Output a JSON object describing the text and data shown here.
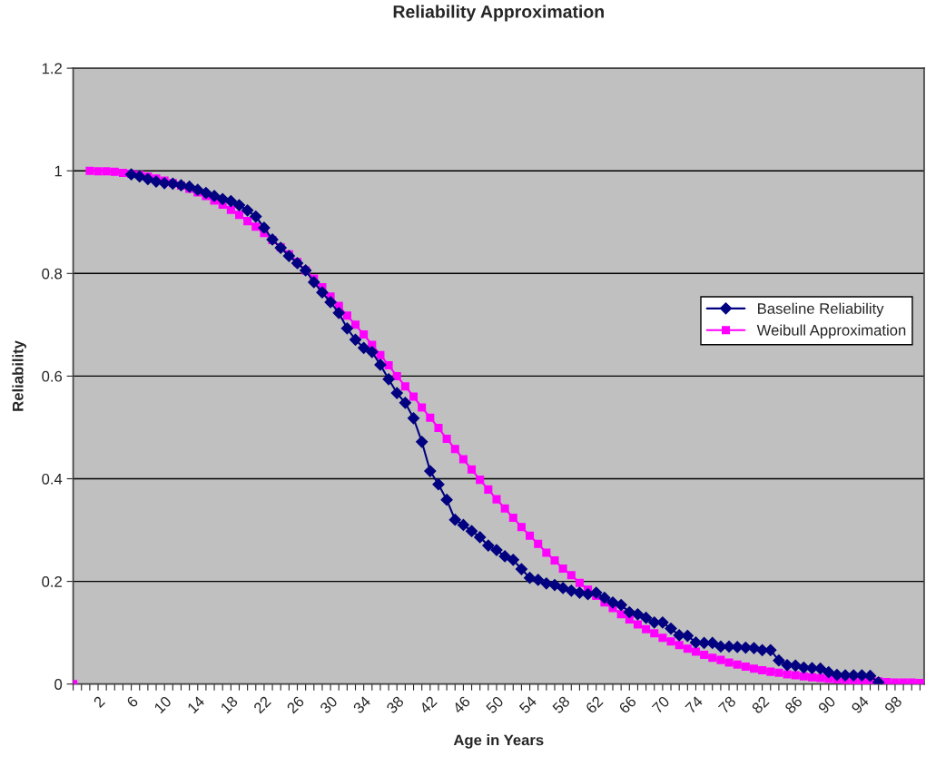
{
  "chart_data": {
    "type": "line",
    "title": "Reliability Approximation",
    "xlabel": "Age in Years",
    "ylabel": "Reliability",
    "categories": [
      null,
      null,
      null,
      "2",
      null,
      null,
      null,
      "6",
      null,
      null,
      null,
      "10",
      null,
      null,
      null,
      "14",
      null,
      null,
      null,
      "18",
      null,
      null,
      null,
      "22",
      null,
      null,
      null,
      "26",
      null,
      null,
      null,
      "30",
      null,
      null,
      null,
      "34",
      null,
      null,
      null,
      "38",
      null,
      null,
      null,
      "42",
      null,
      null,
      null,
      "46",
      null,
      null,
      null,
      "50",
      null,
      null,
      null,
      "54",
      null,
      null,
      null,
      "58",
      null,
      null,
      null,
      "62",
      null,
      null,
      null,
      "66",
      null,
      null,
      null,
      "70",
      null,
      null,
      null,
      "74",
      null,
      null,
      null,
      "78",
      null,
      null,
      null,
      "82",
      null,
      null,
      null,
      "86",
      null,
      null,
      null,
      "90",
      null,
      null,
      null,
      "94",
      null,
      null,
      null,
      "98",
      null,
      null,
      null
    ],
    "series": [
      {
        "name": "Baseline Reliability",
        "color": "#000080",
        "marker": "diamond",
        "values": [
          null,
          null,
          null,
          null,
          null,
          null,
          null,
          0.993,
          0.989,
          0.984,
          0.979,
          0.976,
          0.975,
          0.972,
          0.969,
          0.963,
          0.957,
          0.951,
          0.945,
          0.941,
          0.933,
          0.923,
          0.911,
          0.889,
          0.866,
          0.85,
          0.834,
          0.82,
          0.806,
          0.783,
          0.763,
          0.744,
          0.723,
          0.693,
          0.671,
          0.655,
          0.647,
          0.622,
          0.594,
          0.567,
          0.548,
          0.518,
          0.472,
          0.415,
          0.389,
          0.359,
          0.32,
          0.31,
          0.298,
          0.286,
          0.27,
          0.261,
          0.249,
          0.242,
          0.224,
          0.207,
          0.203,
          0.196,
          0.193,
          0.187,
          0.182,
          0.178,
          0.175,
          0.178,
          0.168,
          0.159,
          0.154,
          0.14,
          0.136,
          0.129,
          0.12,
          0.12,
          0.108,
          0.095,
          0.094,
          0.081,
          0.08,
          0.08,
          0.073,
          0.073,
          0.072,
          0.071,
          0.07,
          0.066,
          0.066,
          0.046,
          0.037,
          0.036,
          0.032,
          0.031,
          0.03,
          0.023,
          0.018,
          0.017,
          0.017,
          0.017,
          0.016,
          0.003,
          null,
          null,
          null,
          null,
          null
        ]
      },
      {
        "name": "Weibull Approximation",
        "color": "#ff00ff",
        "marker": "square",
        "values": [
          0,
          null,
          1.0,
          0.999,
          0.999,
          0.998,
          0.996,
          0.994,
          0.992,
          0.989,
          0.985,
          0.981,
          0.976,
          0.971,
          0.965,
          0.958,
          0.951,
          0.942,
          0.934,
          0.924,
          0.914,
          0.902,
          0.891,
          0.879,
          0.865,
          0.851,
          0.837,
          0.822,
          0.806,
          0.79,
          0.773,
          0.755,
          0.737,
          0.718,
          0.7,
          0.681,
          0.661,
          0.641,
          0.621,
          0.6,
          0.58,
          0.56,
          0.539,
          0.519,
          0.499,
          0.478,
          0.458,
          0.438,
          0.418,
          0.398,
          0.379,
          0.36,
          0.342,
          0.324,
          0.306,
          0.289,
          0.273,
          0.256,
          0.241,
          0.225,
          0.212,
          0.197,
          0.184,
          0.172,
          0.159,
          0.148,
          0.136,
          0.126,
          0.116,
          0.107,
          0.099,
          0.09,
          0.083,
          0.076,
          0.069,
          0.063,
          0.057,
          0.051,
          0.047,
          0.042,
          0.038,
          0.034,
          0.03,
          0.027,
          0.024,
          0.022,
          0.019,
          0.017,
          0.015,
          0.013,
          0.012,
          0.01,
          0.009,
          0.008,
          0.007,
          0.006,
          0.005,
          0.005,
          0.004,
          0.003,
          0.003,
          0.003,
          0.002
        ]
      }
    ],
    "ylim": [
      0,
      1.2
    ],
    "yticks": [
      0,
      0.2,
      0.4,
      0.6,
      0.8,
      1,
      1.2
    ],
    "grid": "y",
    "legend": "right",
    "line_style": "solid"
  }
}
